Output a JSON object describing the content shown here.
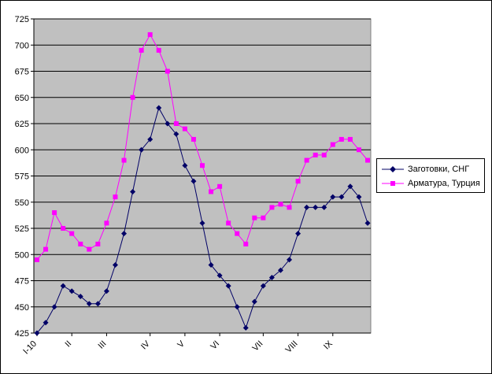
{
  "chart_data": {
    "type": "line",
    "title": "",
    "xlabel": "",
    "ylabel": "",
    "ylim": [
      425,
      725
    ],
    "y_ticks": [
      425,
      450,
      475,
      500,
      525,
      550,
      575,
      600,
      625,
      650,
      675,
      700,
      725
    ],
    "grid": "horizontal",
    "legend_position": "right",
    "x_tick_labels": [
      {
        "label": "I-10",
        "index": 0
      },
      {
        "label": "II",
        "index": 4
      },
      {
        "label": "III",
        "index": 8
      },
      {
        "label": "IV",
        "index": 13
      },
      {
        "label": "V",
        "index": 17
      },
      {
        "label": "VI",
        "index": 21
      },
      {
        "label": "VII",
        "index": 26
      },
      {
        "label": "VIII",
        "index": 30
      },
      {
        "label": "IX",
        "index": 34
      }
    ],
    "series": [
      {
        "name": "Заготовки, СНГ",
        "color": "#000066",
        "marker": "diamond",
        "values": [
          425,
          435,
          450,
          470,
          465,
          460,
          453,
          453,
          465,
          490,
          520,
          560,
          600,
          610,
          640,
          625,
          615,
          585,
          570,
          530,
          490,
          480,
          470,
          450,
          430,
          455,
          470,
          478,
          485,
          495,
          520,
          545,
          545,
          545,
          555,
          555,
          565,
          555,
          530
        ]
      },
      {
        "name": "Арматура, Турция",
        "color": "#ff00ff",
        "marker": "square",
        "values": [
          495,
          505,
          540,
          525,
          520,
          510,
          505,
          510,
          530,
          555,
          590,
          650,
          695,
          710,
          695,
          675,
          625,
          620,
          610,
          585,
          560,
          565,
          530,
          520,
          510,
          535,
          535,
          545,
          548,
          545,
          570,
          590,
          595,
          595,
          605,
          610,
          610,
          600,
          590
        ]
      }
    ],
    "plot_background": "#c0c0c0",
    "gridline_color": "#000000"
  }
}
